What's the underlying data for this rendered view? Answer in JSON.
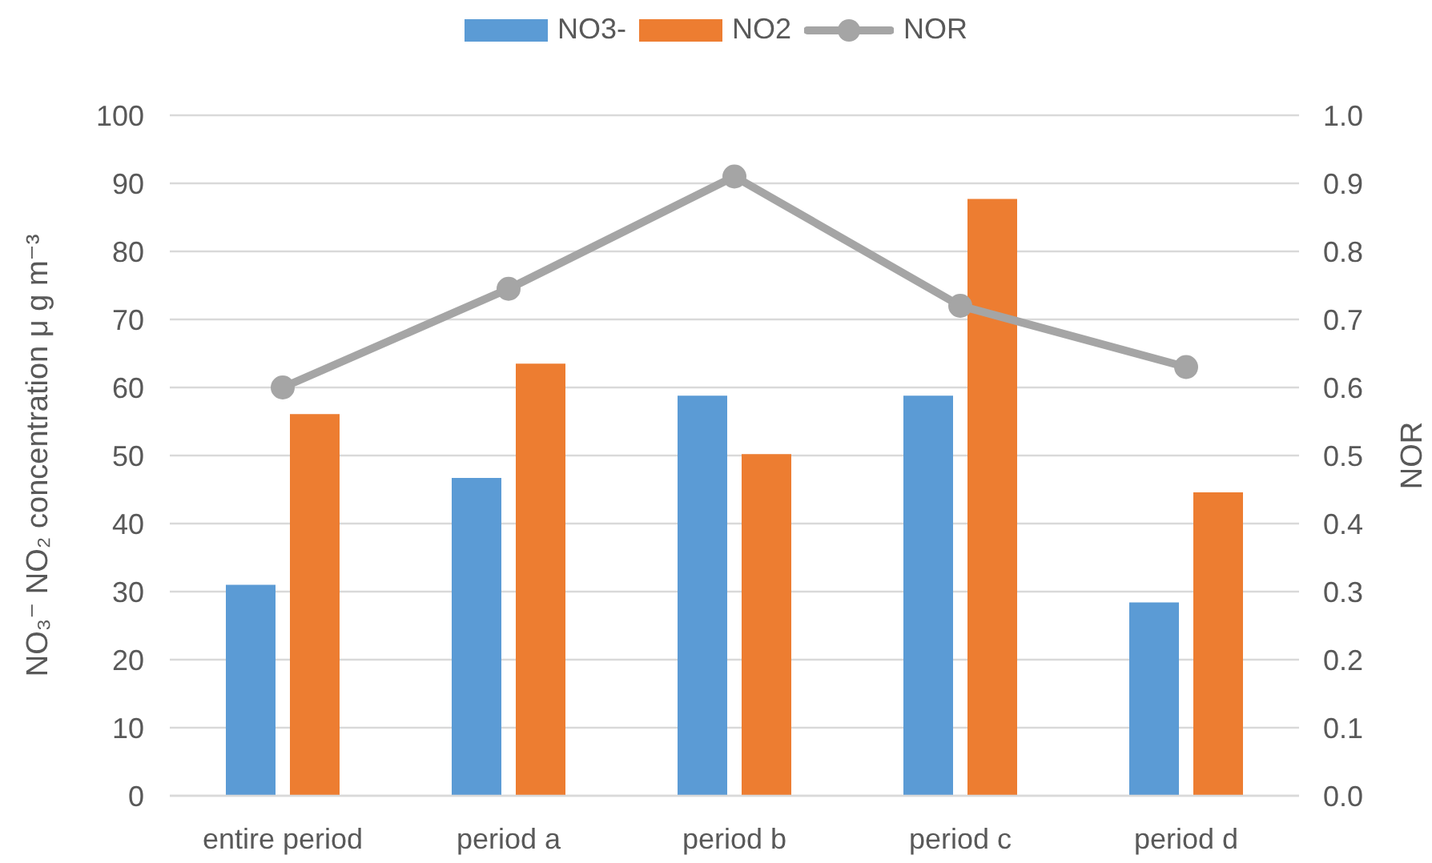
{
  "chart_data": {
    "type": "bar",
    "categories": [
      "entire period",
      "period a",
      "period b",
      "period c",
      "period d"
    ],
    "series": [
      {
        "name": "NO3-",
        "color": "#5b9bd5",
        "values": [
          31,
          46.7,
          58.8,
          58.8,
          28.4
        ]
      },
      {
        "name": "NO2",
        "color": "#ed7d31",
        "values": [
          56.1,
          63.5,
          50.2,
          87.7,
          44.6
        ]
      },
      {
        "name": "NOR",
        "type": "line",
        "axis": "y2",
        "color": "#a5a5a5",
        "values": [
          0.6,
          0.745,
          0.91,
          0.72,
          0.63
        ]
      }
    ],
    "ylabel": "NO₃⁻ NO₂ concentration μ g m⁻³",
    "y2label": "NOR",
    "ylim": [
      0,
      100
    ],
    "yticks": [
      0,
      10,
      20,
      30,
      40,
      50,
      60,
      70,
      80,
      90,
      100
    ],
    "y2lim": [
      0,
      1
    ],
    "y2ticks": [
      {
        "value": 0,
        "label": "0.0"
      },
      0.1,
      0.2,
      0.3,
      0.4,
      0.5,
      0.6,
      0.7,
      0.8,
      0.9,
      {
        "value": 1,
        "label": "1.0"
      }
    ],
    "grid": "y",
    "legend": "top",
    "marker": "circle",
    "line_style": "solid"
  }
}
